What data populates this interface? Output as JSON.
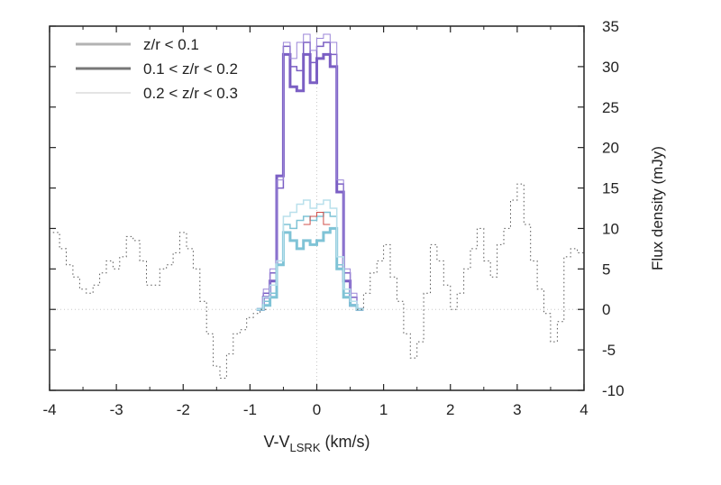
{
  "chart_data": {
    "type": "line",
    "xlabel_main": "V-V",
    "xlabel_sub": "LSRK",
    "xlabel_unit": " (km/s)",
    "ylabel": "Flux density (mJy)",
    "xlim": [
      -4,
      4
    ],
    "ylim": [
      -10,
      35
    ],
    "x_ticks": [
      "-4",
      "-3",
      "-2",
      "-1",
      "0",
      "1",
      "2",
      "3",
      "4"
    ],
    "y_ticks": [
      "35",
      "30",
      "25",
      "20",
      "15",
      "10",
      "5",
      "0",
      "-5",
      "-10"
    ],
    "legend_position": "top-left",
    "legend": [
      {
        "label": "z/r < 0.1",
        "color": "#b3b3b3",
        "width": 3
      },
      {
        "label": "0.1 < z/r < 0.2",
        "color": "#777777",
        "width": 3
      },
      {
        "label": "0.2 < z/r < 0.3",
        "color": "#dcdcdc",
        "width": 1.5
      }
    ],
    "colors": {
      "purple": "#7b5fc4",
      "purple_light": "#9b86d8",
      "cyan": "#7fc3d6",
      "cyan_light": "#b9e0ec",
      "red": "#d0504b",
      "dotted": "#555555",
      "dotted_light": "#aaaaaa"
    },
    "series": [
      {
        "color": "purple",
        "width": 3,
        "style": "step",
        "x": [
          -0.85,
          -0.75,
          -0.65,
          -0.55,
          -0.45,
          -0.35,
          -0.25,
          -0.15,
          -0.05,
          0.05,
          0.15,
          0.25,
          0.35,
          0.45,
          0.55,
          0.65
        ],
        "y": [
          0,
          1.5,
          3.5,
          16.5,
          31.5,
          27.5,
          27,
          31.5,
          28,
          31,
          31.5,
          30,
          14.5,
          3.5,
          0.5,
          0
        ]
      },
      {
        "color": "purple",
        "width": 1.5,
        "style": "step",
        "x": [
          -0.85,
          -0.75,
          -0.65,
          -0.55,
          -0.45,
          -0.35,
          -0.25,
          -0.15,
          -0.05,
          0.05,
          0.15,
          0.25,
          0.35,
          0.45,
          0.55,
          0.65
        ],
        "y": [
          0,
          2,
          4.5,
          15,
          32.5,
          30,
          29.5,
          33,
          30.5,
          32.5,
          33,
          31.5,
          15.5,
          4.5,
          1.5,
          0
        ]
      },
      {
        "color": "purple_light",
        "width": 1,
        "style": "step",
        "x": [
          -0.85,
          -0.75,
          -0.65,
          -0.55,
          -0.45,
          -0.35,
          -0.25,
          -0.15,
          -0.05,
          0.05,
          0.15,
          0.25,
          0.35,
          0.45,
          0.55,
          0.65
        ],
        "y": [
          0,
          2.5,
          5,
          16,
          33,
          31,
          33,
          34,
          32,
          33.5,
          34,
          33,
          16,
          5,
          2,
          0
        ]
      },
      {
        "color": "cyan",
        "width": 3,
        "style": "step",
        "x": [
          -0.85,
          -0.75,
          -0.65,
          -0.55,
          -0.45,
          -0.35,
          -0.25,
          -0.15,
          -0.05,
          0.05,
          0.15,
          0.25,
          0.35,
          0.45,
          0.55,
          0.65
        ],
        "y": [
          0,
          0.5,
          1.5,
          5.5,
          9.5,
          8.5,
          7.5,
          8.5,
          8,
          8.5,
          9.5,
          10,
          5,
          1.5,
          0.5,
          0
        ]
      },
      {
        "color": "cyan",
        "width": 1.5,
        "style": "step",
        "x": [
          -0.85,
          -0.75,
          -0.65,
          -0.55,
          -0.45,
          -0.35,
          -0.25,
          -0.15,
          -0.05,
          0.05,
          0.15,
          0.25,
          0.35,
          0.45,
          0.55,
          0.65
        ],
        "y": [
          0,
          1,
          2,
          5.5,
          10.5,
          10,
          11,
          11.5,
          11,
          11.5,
          12,
          11.5,
          5.5,
          2,
          0.5,
          0
        ]
      },
      {
        "color": "cyan_light",
        "width": 1.5,
        "style": "step",
        "x": [
          -0.85,
          -0.75,
          -0.65,
          -0.55,
          -0.45,
          -0.35,
          -0.25,
          -0.15,
          -0.05,
          0.05,
          0.15,
          0.25,
          0.35,
          0.45,
          0.55,
          0.65
        ],
        "y": [
          0,
          1.5,
          3,
          6,
          11.5,
          12,
          13,
          13.5,
          12.5,
          13,
          13.5,
          12.5,
          6.5,
          2.5,
          1,
          0
        ]
      },
      {
        "color": "red",
        "width": 1,
        "style": "step",
        "x": [
          -0.15,
          -0.05,
          0.05,
          0.15
        ],
        "y": [
          10.5,
          11.5,
          12,
          10.5
        ]
      },
      {
        "color": "dotted",
        "width": 1,
        "style": "dotted-step",
        "x": [
          -3.9,
          -3.8,
          -3.7,
          -3.6,
          -3.5,
          -3.4,
          -3.3,
          -3.2,
          -3.1,
          -3.0,
          -2.9,
          -2.8,
          -2.7,
          -2.6,
          -2.5,
          -2.4,
          -2.3,
          -2.2,
          -2.1,
          -2.0,
          -1.9,
          -1.8,
          -1.7,
          -1.6,
          -1.5,
          -1.4,
          -1.3,
          -1.2,
          -1.1,
          -1.0,
          -0.9,
          -0.8
        ],
        "y": [
          9.5,
          7.5,
          5.5,
          4,
          2.5,
          2,
          3,
          4.5,
          6,
          5,
          6.5,
          9,
          8.5,
          6,
          3,
          3,
          5,
          5.5,
          7,
          9.5,
          7.5,
          5,
          1,
          -3,
          -7,
          -8.5,
          -5.5,
          -3,
          -2.5,
          -1,
          -0.5,
          0
        ]
      },
      {
        "color": "dotted",
        "width": 1,
        "style": "dotted-step",
        "x": [
          0.65,
          0.75,
          0.85,
          0.95,
          1.05,
          1.15,
          1.25,
          1.35,
          1.45,
          1.55,
          1.65,
          1.75,
          1.85,
          1.95,
          2.05,
          2.15,
          2.25,
          2.35,
          2.45,
          2.55,
          2.65,
          2.75,
          2.85,
          2.95,
          3.05,
          3.15,
          3.25,
          3.35,
          3.45,
          3.55,
          3.65,
          3.75,
          3.85,
          3.95
        ],
        "y": [
          0,
          2,
          4.5,
          6,
          8,
          4,
          1,
          -3,
          -6,
          -4,
          2,
          8,
          6,
          3,
          0,
          2,
          5,
          7.5,
          10,
          6,
          4,
          8,
          10,
          13.5,
          15.5,
          10.5,
          6,
          2.5,
          -0.5,
          -4,
          -1.5,
          6.5,
          7.5,
          7
        ]
      }
    ]
  }
}
